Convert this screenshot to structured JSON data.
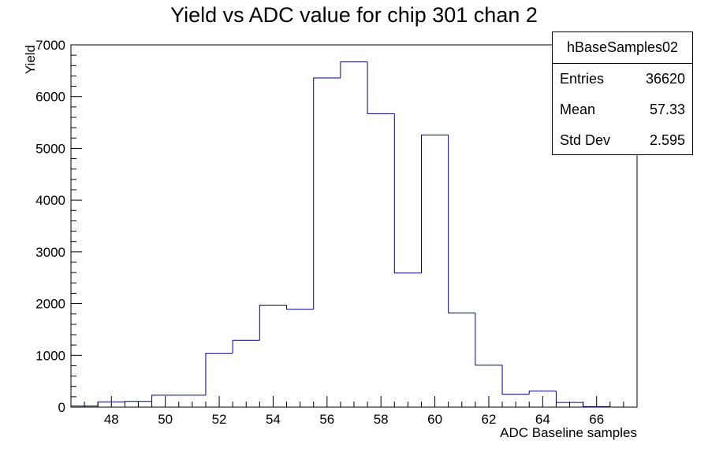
{
  "chart_data": {
    "type": "bar",
    "histogram": true,
    "title": "Yield vs ADC value for chip 301 chan 2",
    "xlabel": "ADC Baseline samples",
    "ylabel": "Yield",
    "xlim": [
      46.5,
      67.5
    ],
    "ylim": [
      0,
      7000
    ],
    "xticks": [
      48,
      50,
      52,
      54,
      56,
      58,
      60,
      62,
      64,
      66
    ],
    "yticks": [
      0,
      1000,
      2000,
      3000,
      4000,
      5000,
      6000,
      7000
    ],
    "grid": false,
    "line_color": "#000080",
    "bins": [
      47,
      48,
      49,
      50,
      51,
      52,
      53,
      54,
      55,
      56,
      57,
      58,
      59,
      60,
      61,
      62,
      63,
      64,
      65,
      66
    ],
    "values": [
      20,
      100,
      110,
      230,
      230,
      1040,
      1290,
      1970,
      1890,
      6360,
      6670,
      5670,
      2590,
      5260,
      1820,
      810,
      250,
      310,
      90,
      10
    ]
  },
  "stats_box": {
    "name": "hBaseSamples02",
    "entries_label": "Entries",
    "entries": "36620",
    "mean_label": "Mean",
    "mean": "57.33",
    "stddev_label": "Std Dev",
    "stddev": "2.595"
  }
}
